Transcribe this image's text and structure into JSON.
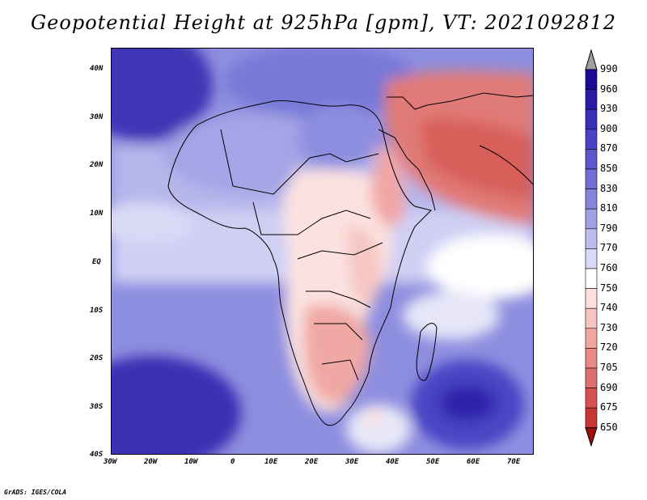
{
  "title": "Geopotential Height at 925hPa [gpm], VT: 2021092812",
  "footer": "GrADS: IGES/COLA",
  "y_axis_labels": [
    "40N",
    "30N",
    "20N",
    "10N",
    "EQ",
    "10S",
    "20S",
    "30S",
    "40S"
  ],
  "x_axis_labels": [
    "30W",
    "20W",
    "10W",
    "0",
    "10E",
    "20E",
    "30E",
    "40E",
    "50E",
    "60E",
    "70E"
  ],
  "colorbar": {
    "labels": [
      "990",
      "960",
      "930",
      "900",
      "870",
      "850",
      "830",
      "810",
      "790",
      "770",
      "760",
      "750",
      "740",
      "730",
      "720",
      "705",
      "690",
      "675",
      "650"
    ],
    "colors": [
      "#1a0a96",
      "#2a1aa8",
      "#3a30b8",
      "#4a44c4",
      "#5a58cc",
      "#6e6ed6",
      "#8585de",
      "#a0a0e6",
      "#bcbcee",
      "#dadaf6",
      "#ffffff",
      "#fde0de",
      "#f8c4c2",
      "#f2a6a4",
      "#ea8a88",
      "#e06e6c",
      "#d65250",
      "#c83634",
      "#b51c1c"
    ],
    "over_color": "#a0a0a0",
    "under_color": "#9e1010"
  }
}
